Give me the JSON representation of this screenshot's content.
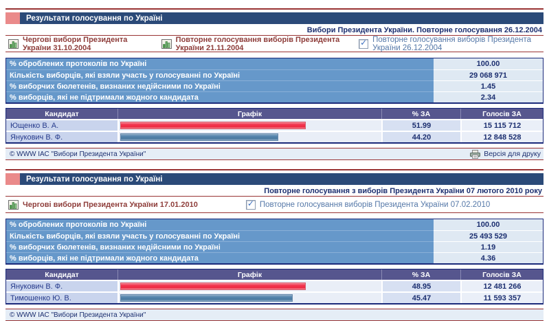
{
  "colors": {
    "maroon_rule": "#993333",
    "title_bar": "#2b4a78",
    "title_square": "#ea8a8a",
    "stat_label_bg": "#6698ca",
    "table_header_bg": "#56568e",
    "red_bar": "#ee2740",
    "blue_bar": "#49799f"
  },
  "panels": [
    {
      "title": "Результати голосування по Україні",
      "subtitle": "Вибори Президента України. Повторне голосування 26.12.2004",
      "tabs": [
        {
          "label": "Чергові вибори Президента України 31.10.2004",
          "type": "link"
        },
        {
          "label": "Повторне голосування виборів Президента України 21.11.2004",
          "type": "link"
        },
        {
          "label": "Повторне голосування виборів Президента України 26.12.2004",
          "type": "current"
        }
      ],
      "stats": [
        {
          "label": "% оброблених протоколів по Україні",
          "value": "100.00"
        },
        {
          "label": "Кількість виборців, які взяли участь у голосуванні по Україні",
          "value": "29 068 971"
        },
        {
          "label": "% виборчих бюлетенів, визнаних недійсними по Україні",
          "value": "1.45"
        },
        {
          "label": "% виборців, які не підтримали жодного кандидата",
          "value": "2.34"
        }
      ],
      "table_headers": {
        "candidate": "Кандидат",
        "graph": "Графік",
        "percent": "% ЗА",
        "votes": "Голосів ЗА"
      },
      "candidates": [
        {
          "name": "Ющенко В. А.",
          "percent": "51.99",
          "votes": "15 115 712"
        },
        {
          "name": "Янукович В. Ф.",
          "percent": "44.20",
          "votes": "12 848 528"
        }
      ],
      "footer": {
        "copyright": "© WWW ІАС \"Вибори Президента України\"",
        "print_label": "Версія для друку"
      }
    },
    {
      "title": "Результати голосування по Україні",
      "subtitle": "Повторне голосування з виборів Президента України 07 лютого 2010 року",
      "tabs": [
        {
          "label": "Чергові вибори Президента України 17.01.2010",
          "type": "link"
        },
        {
          "label": "Повторне голосування виборів Президента України 07.02.2010",
          "type": "current"
        }
      ],
      "stats": [
        {
          "label": "% оброблених протоколів по Україні",
          "value": "100.00"
        },
        {
          "label": "Кількість виборців, які взяли участь у голосуванні по Україні",
          "value": "25 493 529"
        },
        {
          "label": "% виборчих бюлетенів, визнаних недійсними по Україні",
          "value": "1.19"
        },
        {
          "label": "% виборців, які не підтримали жодного кандидата",
          "value": "4.36"
        }
      ],
      "table_headers": {
        "candidate": "Кандидат",
        "graph": "Графік",
        "percent": "% ЗА",
        "votes": "Голосів ЗА"
      },
      "candidates": [
        {
          "name": "Янукович В. Ф.",
          "percent": "48.95",
          "votes": "12 481 266"
        },
        {
          "name": "Тимошенко Ю. В.",
          "percent": "45.47",
          "votes": "11 593 357"
        }
      ],
      "footer": {
        "copyright": "© WWW ІАС \"Вибори Президента України\""
      }
    }
  ]
}
